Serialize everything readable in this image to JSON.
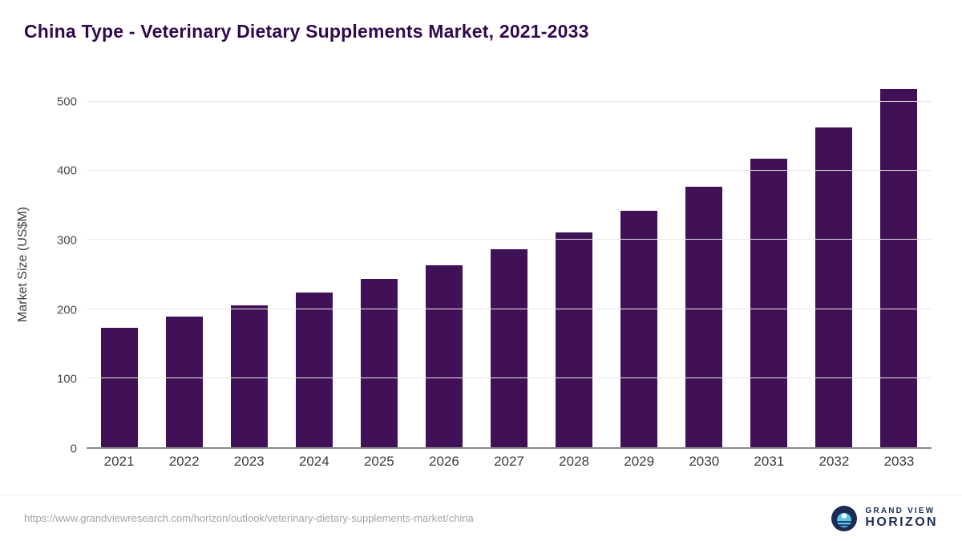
{
  "title": "China Type - Veterinary Dietary Supplements Market, 2021-2033",
  "source_url": "https://www.grandviewresearch.com/horizon/outlook/veterinary-dietary-supplements-market/china",
  "logo": {
    "line1": "GRAND VIEW",
    "line2": "HORIZON",
    "icon": "horizon-sun-icon"
  },
  "colors": {
    "bar": "#401156",
    "title": "#31094e",
    "gridline": "#e7e7e7",
    "axis_line": "#8a8a8a",
    "tick_text": "#4a4a4a",
    "url_text": "#a3a3a3",
    "logo_navy": "#1b2c55",
    "logo_blue": "#5bc6ea"
  },
  "chart_data": {
    "type": "bar",
    "title": "China Type - Veterinary Dietary Supplements Market, 2021-2033",
    "xlabel": "",
    "ylabel": "Market Size (US$M)",
    "categories": [
      "2021",
      "2022",
      "2023",
      "2024",
      "2025",
      "2026",
      "2027",
      "2028",
      "2029",
      "2030",
      "2031",
      "2032",
      "2033"
    ],
    "values": [
      173,
      189,
      205,
      224,
      243,
      263,
      286,
      311,
      342,
      377,
      417,
      463,
      518
    ],
    "ylim": [
      0,
      531
    ],
    "yticks": [
      0,
      100,
      200,
      300,
      400,
      500
    ],
    "grid": true,
    "legend": false,
    "bar_color": "#401156"
  }
}
